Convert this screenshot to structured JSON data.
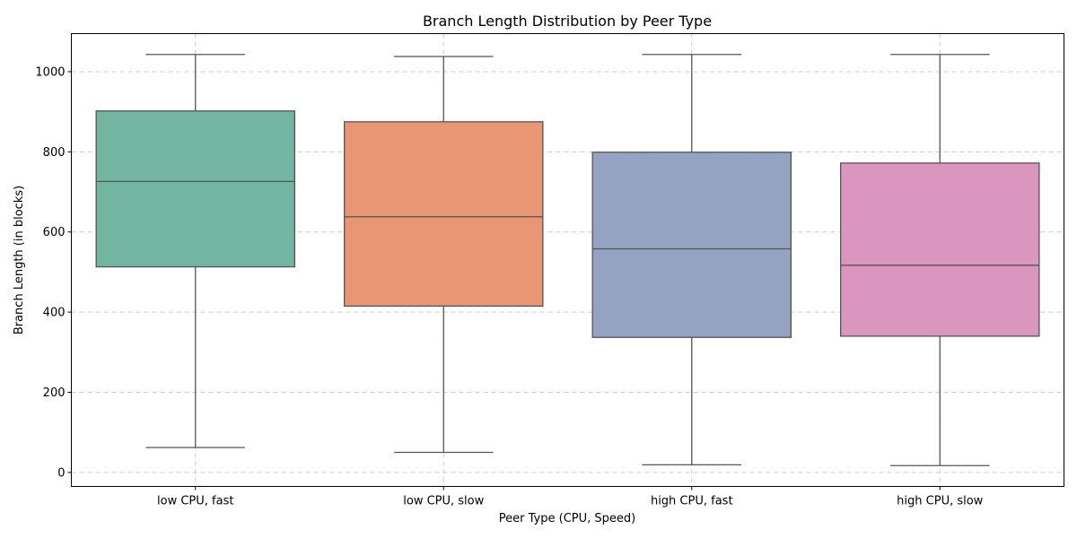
{
  "chart_data": {
    "type": "box",
    "title": "Branch Length Distribution by Peer Type",
    "xlabel": "Peer Type (CPU, Speed)",
    "ylabel": "Branch Length (in blocks)",
    "ylim": [
      -35,
      1095
    ],
    "yticks": [
      0,
      200,
      400,
      600,
      800,
      1000
    ],
    "grid": true,
    "categories": [
      "low CPU, fast",
      "low CPU, slow",
      "high CPU, fast",
      "high CPU, slow"
    ],
    "colors": [
      "#72b6a1",
      "#e99675",
      "#95a3c3",
      "#db96c0"
    ],
    "boxes": [
      {
        "min": 62,
        "q1": 513,
        "median": 726,
        "q3": 902,
        "max": 1043
      },
      {
        "min": 50,
        "q1": 415,
        "median": 638,
        "q3": 875,
        "max": 1038
      },
      {
        "min": 19,
        "q1": 337,
        "median": 558,
        "q3": 799,
        "max": 1043
      },
      {
        "min": 17,
        "q1": 340,
        "median": 517,
        "q3": 772,
        "max": 1043
      }
    ]
  }
}
